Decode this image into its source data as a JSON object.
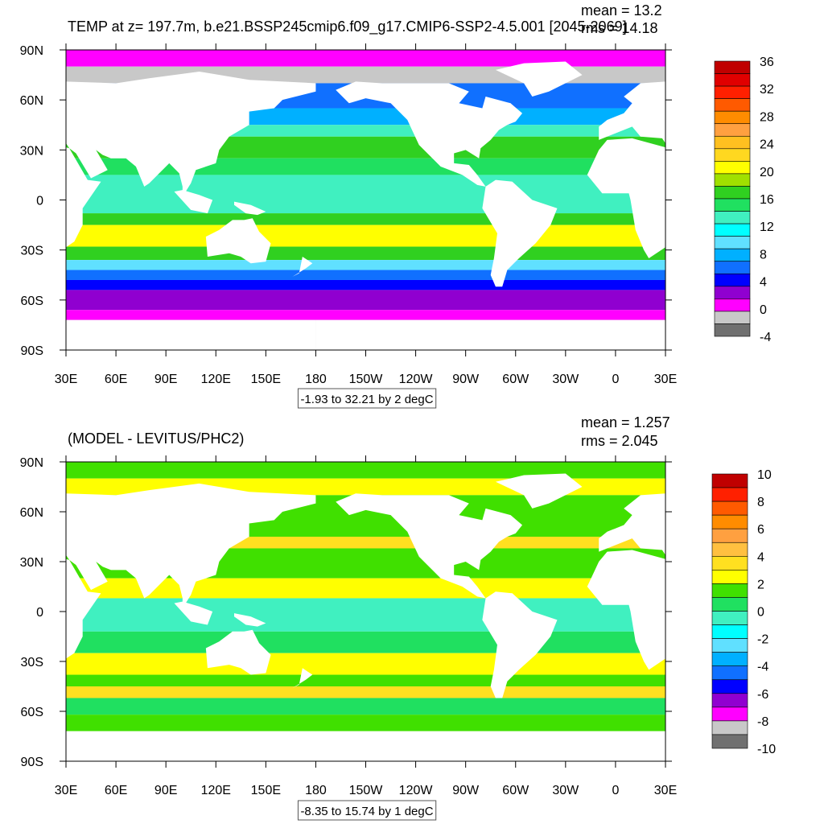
{
  "panels": [
    {
      "title": "TEMP at z= 197.7m, b.e21.BSSP245cmip6.f09_g17.CMIP6-SSP2-4.5.001 [2045-2069]",
      "stats": [
        "mean = 13.2",
        "rms = 14.18"
      ],
      "lat_labels": [
        "90N",
        "60N",
        "30N",
        "0",
        "30S",
        "60S",
        "90S"
      ],
      "lon_labels": [
        "30E",
        "60E",
        "90E",
        "120E",
        "150E",
        "180",
        "150W",
        "120W",
        "90W",
        "60W",
        "30W",
        "0",
        "30E"
      ],
      "colorbar": {
        "labels": [
          "36",
          "32",
          "28",
          "24",
          "20",
          "16",
          "12",
          "8",
          "4",
          "0",
          "-4"
        ],
        "colors": [
          "#c00000",
          "#e00000",
          "#ff2000",
          "#ff5a00",
          "#ff8c00",
          "#ffa040",
          "#ffc020",
          "#ffd820",
          "#ffff00",
          "#a0e000",
          "#30d020",
          "#20e060",
          "#40f0c0",
          "#00ffff",
          "#60e0ff",
          "#00b0ff",
          "#1070ff",
          "#0000ff",
          "#9000d0",
          "#ff00ff",
          "#c8c8c8",
          "#707070"
        ]
      },
      "info": "-1.93 to 32.21 by 2 degC"
    },
    {
      "title": "(MODEL - LEVITUS/PHC2)",
      "stats": [
        "mean = 1.257",
        "rms = 2.045"
      ],
      "lat_labels": [
        "90N",
        "60N",
        "30N",
        "0",
        "30S",
        "60S",
        "90S"
      ],
      "lon_labels": [
        "30E",
        "60E",
        "90E",
        "120E",
        "150E",
        "180",
        "150W",
        "120W",
        "90W",
        "60W",
        "30W",
        "0",
        "30E"
      ],
      "colorbar": {
        "labels": [
          "10",
          "8",
          "6",
          "4",
          "2",
          "0",
          "-2",
          "-4",
          "-6",
          "-8",
          "-10"
        ],
        "colors": [
          "#c00000",
          "#ff2000",
          "#ff5a00",
          "#ff8c00",
          "#ffa040",
          "#ffc040",
          "#ffe020",
          "#ffff00",
          "#40e000",
          "#20e060",
          "#40f0c0",
          "#00ffff",
          "#60e0ff",
          "#00b0ff",
          "#1070ff",
          "#0000ff",
          "#9000d0",
          "#ff00ff",
          "#c8c8c8",
          "#707070"
        ]
      },
      "info": "-8.35 to 15.74 by 1 degC"
    }
  ]
}
